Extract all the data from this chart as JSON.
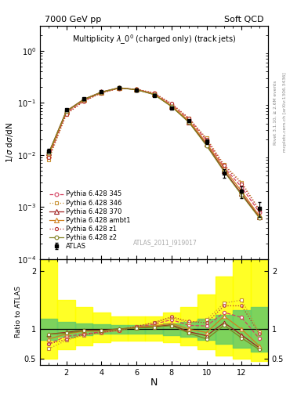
{
  "title_left": "7000 GeV pp",
  "title_right": "Soft QCD",
  "plot_title": "Multiplicity $\\lambda\\_0^0$ (charged only) (track jets)",
  "xlabel": "N",
  "ylabel_main": "1/$\\sigma$ d$\\sigma$/dN",
  "ylabel_ratio": "Ratio to ATLAS",
  "watermark": "ATLAS_2011_I919017",
  "right_label": "Rivet 3.1.10, ≥ 2.6M events",
  "right_label2": "mcplots.cern.ch [arXiv:1306.3436]",
  "N": [
    1,
    2,
    3,
    4,
    5,
    6,
    7,
    8,
    9,
    10,
    11,
    12,
    13
  ],
  "atlas": [
    0.012,
    0.074,
    0.12,
    0.165,
    0.195,
    0.175,
    0.14,
    0.08,
    0.045,
    0.018,
    0.0045,
    0.002,
    0.00095
  ],
  "atlas_err": [
    0.001,
    0.004,
    0.006,
    0.008,
    0.009,
    0.008,
    0.007,
    0.004,
    0.003,
    0.002,
    0.0008,
    0.0005,
    0.0003
  ],
  "p345": [
    0.009,
    0.065,
    0.11,
    0.158,
    0.192,
    0.182,
    0.152,
    0.093,
    0.048,
    0.019,
    0.0058,
    0.0024,
    0.0008
  ],
  "p346": [
    0.008,
    0.06,
    0.108,
    0.155,
    0.19,
    0.183,
    0.155,
    0.096,
    0.05,
    0.021,
    0.0065,
    0.003,
    0.0009
  ],
  "p370": [
    0.011,
    0.07,
    0.118,
    0.162,
    0.196,
    0.18,
    0.146,
    0.086,
    0.043,
    0.016,
    0.005,
    0.0018,
    0.00065
  ],
  "pambt1": [
    0.01,
    0.068,
    0.116,
    0.16,
    0.194,
    0.181,
    0.148,
    0.088,
    0.045,
    0.017,
    0.0055,
    0.002,
    0.00068
  ],
  "pz1": [
    0.009,
    0.061,
    0.109,
    0.156,
    0.191,
    0.184,
    0.156,
    0.097,
    0.051,
    0.02,
    0.0063,
    0.0028,
    0.00088
  ],
  "pz2": [
    0.011,
    0.069,
    0.117,
    0.161,
    0.195,
    0.179,
    0.145,
    0.085,
    0.042,
    0.015,
    0.0048,
    0.0017,
    0.00062
  ],
  "color_345": "#d44060",
  "color_346": "#c89030",
  "color_370": "#a02020",
  "color_ambt1": "#d08020",
  "color_z1": "#b83030",
  "color_z2": "#808020",
  "main_ylim": [
    0.0001,
    3.0
  ],
  "ratio_ylim": [
    0.39,
    2.2
  ],
  "xlim": [
    0.5,
    13.5
  ],
  "ratio_yticks": [
    0.5,
    1.0,
    2.0
  ],
  "ratio_yticklabels": [
    "0.5",
    "1",
    "2"
  ],
  "band_N": [
    1,
    2,
    3,
    4,
    5,
    6,
    7,
    8,
    9,
    10,
    11,
    12,
    13
  ],
  "band_ylo": [
    0.5,
    0.65,
    0.72,
    0.78,
    0.8,
    0.8,
    0.8,
    0.78,
    0.72,
    0.65,
    0.55,
    0.5,
    0.45
  ],
  "band_yhi": [
    2.2,
    1.5,
    1.38,
    1.28,
    1.22,
    1.22,
    1.22,
    1.28,
    1.38,
    1.6,
    1.9,
    2.2,
    2.2
  ],
  "green_ylo": [
    0.82,
    0.87,
    0.9,
    0.92,
    0.93,
    0.93,
    0.93,
    0.9,
    0.87,
    0.82,
    0.75,
    0.68,
    0.62
  ],
  "green_yhi": [
    1.18,
    1.13,
    1.1,
    1.08,
    1.07,
    1.07,
    1.07,
    1.1,
    1.13,
    1.18,
    1.25,
    1.32,
    1.38
  ]
}
